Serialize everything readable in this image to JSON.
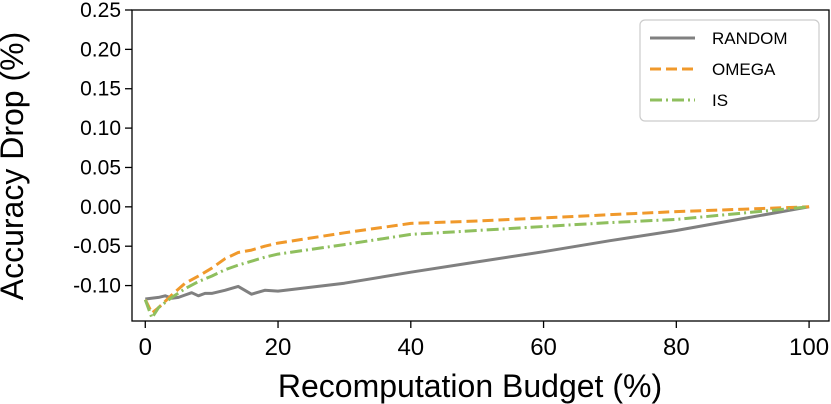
{
  "chart_data": {
    "type": "line",
    "title": "",
    "xlabel": "Recomputation Budget (%)",
    "ylabel": "Accuracy Drop (%)",
    "xlim": [
      -2,
      103
    ],
    "ylim": [
      -0.145,
      0.25
    ],
    "xticks": [
      0,
      20,
      40,
      60,
      80,
      100
    ],
    "xtick_labels": [
      "0",
      "20",
      "40",
      "60",
      "80",
      "100"
    ],
    "yticks": [
      -0.1,
      -0.05,
      0.0,
      0.05,
      0.1,
      0.15,
      0.2,
      0.25
    ],
    "ytick_labels": [
      "-0.10",
      "-0.05",
      "0.00",
      "0.05",
      "0.10",
      "0.15",
      "0.20",
      "0.25"
    ],
    "grid": false,
    "legend_position": "top-right",
    "series": [
      {
        "name": "RANDOM",
        "color": "#808080",
        "style": "solid",
        "x": [
          0,
          2,
          3,
          4,
          5,
          6,
          7,
          8,
          9,
          10,
          12,
          14,
          16,
          18,
          20,
          30,
          40,
          50,
          60,
          70,
          80,
          90,
          100
        ],
        "y": [
          -0.117,
          -0.115,
          -0.113,
          -0.116,
          -0.115,
          -0.112,
          -0.109,
          -0.113,
          -0.11,
          -0.11,
          -0.106,
          -0.101,
          -0.111,
          -0.106,
          -0.107,
          -0.097,
          -0.083,
          -0.07,
          -0.057,
          -0.043,
          -0.03,
          -0.015,
          0.0
        ]
      },
      {
        "name": "OMEGA",
        "color": "#f0992b",
        "style": "dashed",
        "x": [
          0,
          1,
          2,
          4,
          6,
          8,
          10,
          12,
          14,
          16,
          18,
          20,
          30,
          40,
          50,
          60,
          70,
          80,
          90,
          100
        ],
        "y": [
          -0.118,
          -0.135,
          -0.128,
          -0.112,
          -0.097,
          -0.088,
          -0.078,
          -0.066,
          -0.058,
          -0.055,
          -0.05,
          -0.046,
          -0.033,
          -0.021,
          -0.018,
          -0.014,
          -0.01,
          -0.006,
          -0.003,
          0.0
        ]
      },
      {
        "name": "IS",
        "color": "#8fbf5e",
        "style": "dashdot",
        "x": [
          0,
          1,
          2,
          4,
          6,
          8,
          10,
          12,
          14,
          16,
          18,
          20,
          30,
          40,
          50,
          60,
          70,
          80,
          90,
          100
        ],
        "y": [
          -0.118,
          -0.141,
          -0.128,
          -0.115,
          -0.104,
          -0.095,
          -0.088,
          -0.08,
          -0.074,
          -0.069,
          -0.064,
          -0.06,
          -0.048,
          -0.035,
          -0.03,
          -0.025,
          -0.02,
          -0.016,
          -0.008,
          0.0
        ]
      }
    ]
  }
}
